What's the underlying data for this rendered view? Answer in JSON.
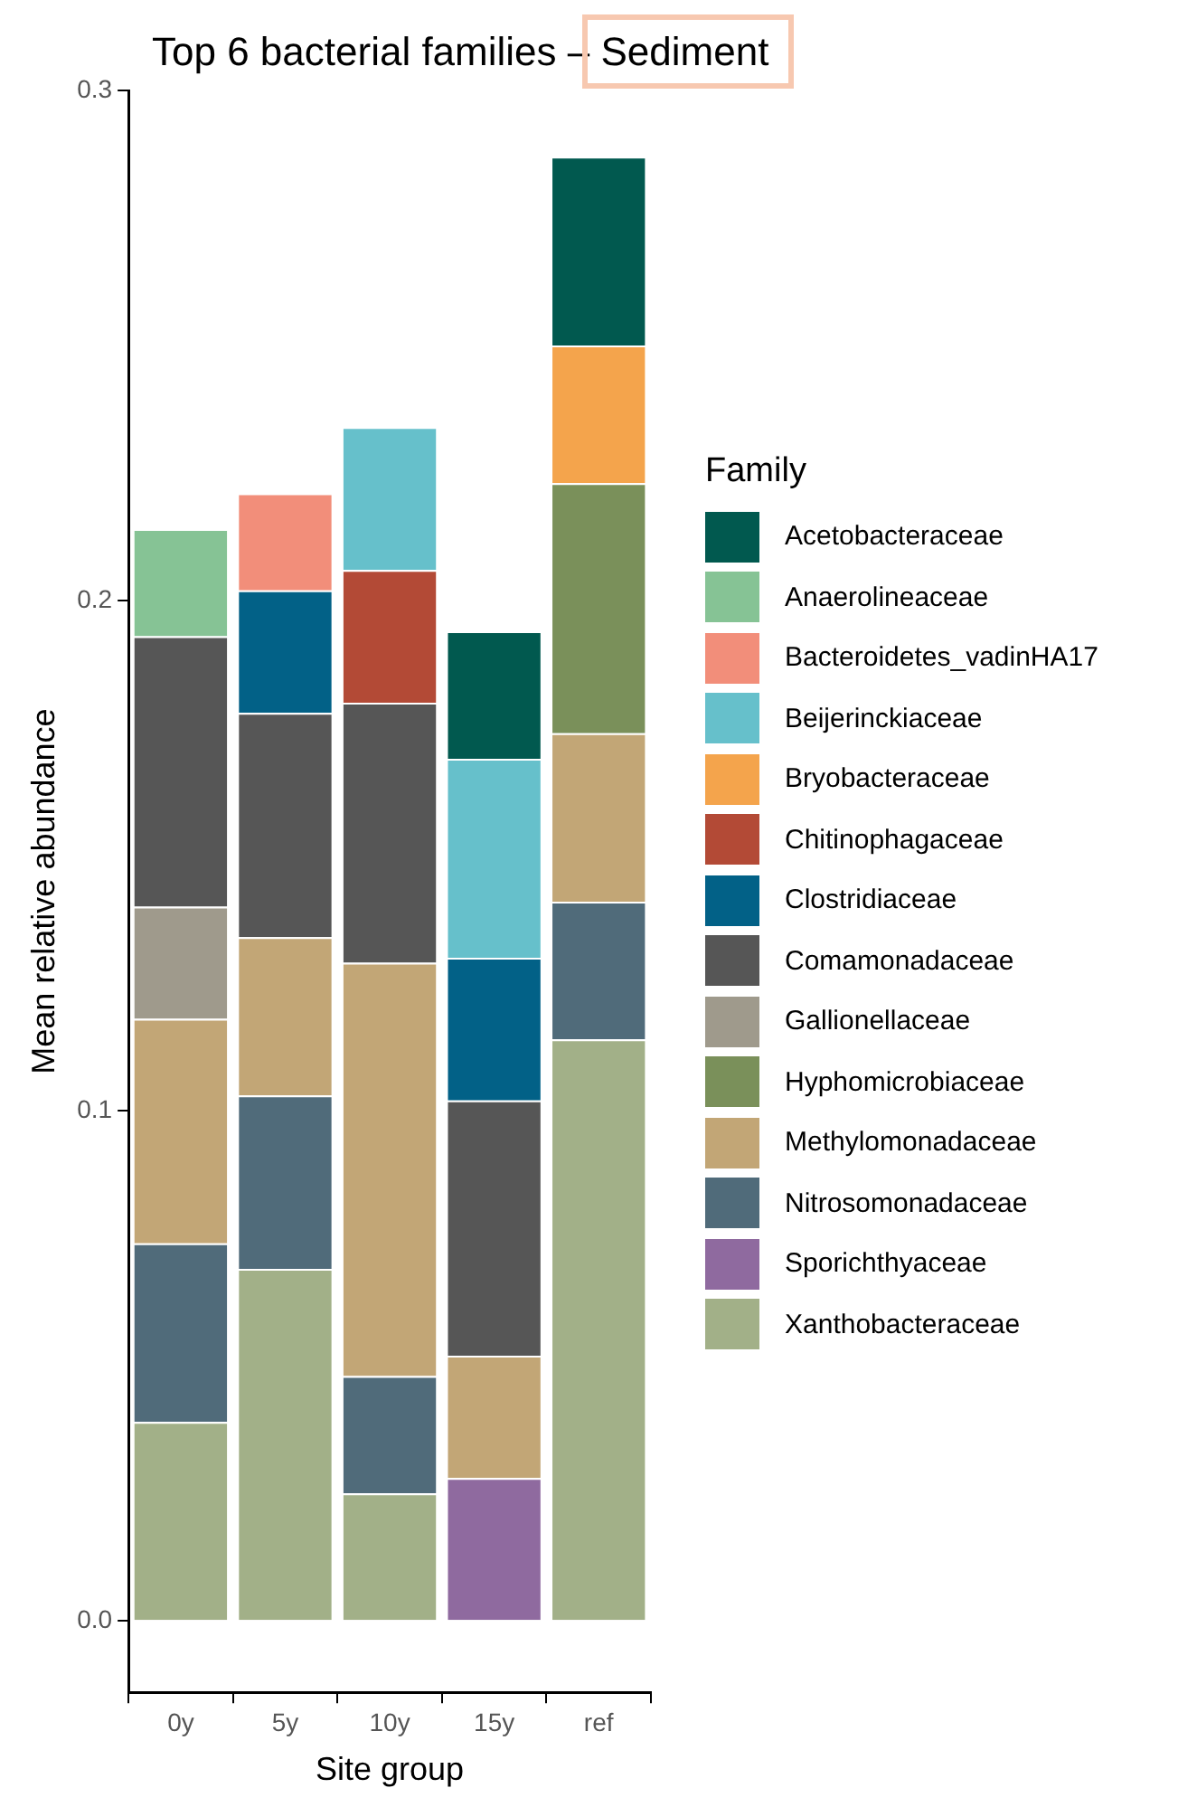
{
  "chart_data": {
    "type": "bar",
    "stacked": true,
    "title": "Top 6 bacterial families – Sediment",
    "xlabel": "Site group",
    "ylabel": "Mean relative abundance",
    "legend_title": "Family",
    "legend": "right",
    "grid": false,
    "categories": [
      "0y",
      "5y",
      "10y",
      "15y",
      "ref"
    ],
    "ylim": [
      -0.014,
      0.3
    ],
    "yticks": [
      {
        "value": 0,
        "label": "0.0"
      },
      0.1,
      0.2,
      0.3
    ],
    "series": [
      {
        "name": "Xanthobacteraceae",
        "color": "#a2b088",
        "values": [
          0.039,
          0.069,
          0.025,
          null,
          0.114
        ]
      },
      {
        "name": "Sporichthyaceae",
        "color": "#8f6a9f",
        "values": [
          null,
          null,
          null,
          0.028,
          null
        ]
      },
      {
        "name": "Nitrosomonadaceae",
        "color": "#506b7a",
        "values": [
          0.035,
          0.034,
          0.023,
          null,
          0.027
        ]
      },
      {
        "name": "Methylomonadaceae",
        "color": "#c2a676",
        "values": [
          0.044,
          0.031,
          0.081,
          0.024,
          0.033
        ]
      },
      {
        "name": "Hyphomicrobiaceae",
        "color": "#7a905a",
        "values": [
          null,
          null,
          null,
          null,
          0.049
        ]
      },
      {
        "name": "Gallionellaceae",
        "color": "#9f9a8c",
        "values": [
          0.022,
          null,
          null,
          null,
          null
        ]
      },
      {
        "name": "Comamonadaceae",
        "color": "#565656",
        "values": [
          0.053,
          0.044,
          0.051,
          0.05,
          null
        ]
      },
      {
        "name": "Clostridiaceae",
        "color": "#026187",
        "values": [
          null,
          0.024,
          null,
          0.028,
          null
        ]
      },
      {
        "name": "Chitinophagaceae",
        "color": "#b34a36",
        "values": [
          null,
          null,
          0.026,
          null,
          null
        ]
      },
      {
        "name": "Bryobacteraceae",
        "color": "#f4a44c",
        "values": [
          null,
          null,
          null,
          null,
          0.027
        ]
      },
      {
        "name": "Beijerinckiaceae",
        "color": "#66c0cb",
        "values": [
          null,
          null,
          0.028,
          0.039,
          null
        ]
      },
      {
        "name": "Bacteroidetes_vadinHA17",
        "color": "#f28e7a",
        "values": [
          null,
          0.019,
          null,
          null,
          null
        ]
      },
      {
        "name": "Anaerolineaceae",
        "color": "#86c395",
        "values": [
          0.021,
          null,
          null,
          null,
          null
        ]
      },
      {
        "name": "Acetobacteraceae",
        "color": "#01594f",
        "values": [
          null,
          null,
          null,
          0.025,
          0.037
        ]
      }
    ]
  }
}
